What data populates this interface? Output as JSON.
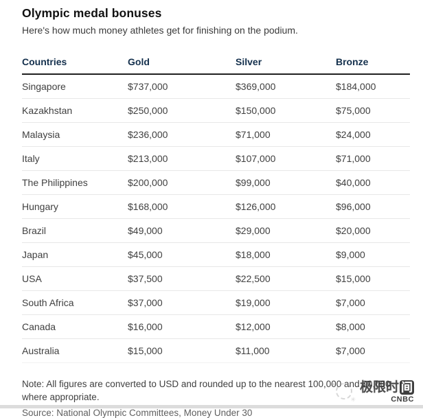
{
  "title": "Olympic medal bonuses",
  "subtitle": "Here's how much money athletes get for finishing on the podium.",
  "table": {
    "headers": [
      "Countries",
      "Gold",
      "Silver",
      "Bronze"
    ],
    "rows": [
      [
        "Singapore",
        "$737,000",
        "$369,000",
        "$184,000"
      ],
      [
        "Kazakhstan",
        "$250,000",
        "$150,000",
        "$75,000"
      ],
      [
        "Malaysia",
        "$236,000",
        "$71,000",
        "$24,000"
      ],
      [
        "Italy",
        "$213,000",
        "$107,000",
        "$71,000"
      ],
      [
        "The Philippines",
        "$200,000",
        "$99,000",
        "$40,000"
      ],
      [
        "Hungary",
        "$168,000",
        "$126,000",
        "$96,000"
      ],
      [
        "Brazil",
        "$49,000",
        "$29,000",
        "$20,000"
      ],
      [
        "Japan",
        "$45,000",
        "$18,000",
        "$9,000"
      ],
      [
        "USA",
        "$37,500",
        "$22,500",
        "$15,000"
      ],
      [
        "South Africa",
        "$37,000",
        "$19,000",
        "$7,000"
      ],
      [
        "Canada",
        "$16,000",
        "$12,000",
        "$8,000"
      ],
      [
        "Australia",
        "$15,000",
        "$11,000",
        "$7,000"
      ]
    ]
  },
  "note": "Note: All figures are converted to USD and rounded up to the nearest 100,000 and 10,000 where appropriate.",
  "source": "Source: National Olympic Committees, Money Under 30",
  "watermark": {
    "text_plain": "极限时",
    "text_boxed": "间",
    "brand": "CNBC"
  },
  "colors": {
    "header_text": "#14304d",
    "header_rule": "#1f1f1f",
    "row_divider": "#e7e7e7",
    "body_text": "#3f3f3f",
    "title_text": "#111111",
    "muted_text": "#5f5f5f"
  },
  "chart_data": {
    "type": "table",
    "title": "Olympic medal bonuses",
    "subtitle": "Here's how much money athletes get for finishing on the podium.",
    "columns": [
      "Countries",
      "Gold",
      "Silver",
      "Bronze"
    ],
    "categories": [
      "Singapore",
      "Kazakhstan",
      "Malaysia",
      "Italy",
      "The Philippines",
      "Hungary",
      "Brazil",
      "Japan",
      "USA",
      "South Africa",
      "Canada",
      "Australia"
    ],
    "series": [
      {
        "name": "Gold",
        "values": [
          737000,
          250000,
          236000,
          213000,
          200000,
          168000,
          49000,
          45000,
          37500,
          37000,
          16000,
          15000
        ]
      },
      {
        "name": "Silver",
        "values": [
          369000,
          150000,
          71000,
          107000,
          99000,
          126000,
          29000,
          18000,
          22500,
          19000,
          12000,
          11000
        ]
      },
      {
        "name": "Bronze",
        "values": [
          184000,
          75000,
          24000,
          71000,
          40000,
          96000,
          20000,
          9000,
          15000,
          7000,
          8000,
          7000
        ]
      }
    ],
    "unit": "USD",
    "note": "Note: All figures are converted to USD and rounded up to the nearest 100,000 and 10,000 where appropriate.",
    "source": "Source: National Olympic Committees, Money Under 30"
  }
}
